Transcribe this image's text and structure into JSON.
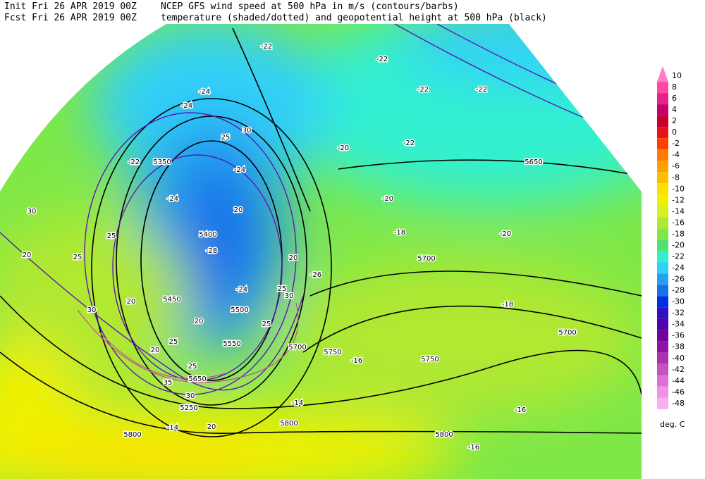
{
  "header": {
    "init": "Init  Fri 26 APR 2019 00Z",
    "fcst": "Fcst Fri 26 APR 2019 00Z",
    "title": "NCEP GFS wind speed at 500 hPa in m/s (contours/barbs)",
    "subtitle": "temperature (shaded/dotted) and geopotential height at 500 hPa (black)"
  },
  "legend": {
    "unit": "deg. C",
    "levels": [
      10,
      8,
      6,
      4,
      2,
      0,
      -2,
      -4,
      -6,
      -8,
      -10,
      -12,
      -14,
      -16,
      -18,
      -20,
      -22,
      -24,
      -26,
      -28,
      -30,
      -32,
      -34,
      -36,
      -38,
      -40,
      -42,
      -44,
      -46,
      -48
    ],
    "colors": [
      "#ff7ec8",
      "#ff4aa0",
      "#e8208a",
      "#c8006e",
      "#c8002a",
      "#e8141c",
      "#ff4000",
      "#ff7a00",
      "#ffa000",
      "#ffbf00",
      "#ffe000",
      "#f0f000",
      "#d8f020",
      "#b0e830",
      "#7ee848",
      "#50e070",
      "#30f0d0",
      "#30d0f8",
      "#28a0f0",
      "#1870e8",
      "#0030e0",
      "#3010c0",
      "#5000b0",
      "#7000a0",
      "#9010a0",
      "#b030b0",
      "#c850c0",
      "#e070d8",
      "#f090e8",
      "#f8b0f0"
    ]
  },
  "map_labels": [
    -22,
    -22,
    -24,
    -22,
    -22,
    -24,
    30,
    25,
    -22,
    -20,
    -22,
    5350,
    -24,
    5650,
    -24,
    20,
    -20,
    25,
    30,
    25,
    20,
    5400,
    -18,
    -20,
    -28,
    20,
    -26,
    5700,
    25,
    30,
    20,
    5450,
    -18,
    -24,
    5500,
    30,
    20,
    25,
    5700,
    5550,
    25,
    20,
    5700,
    5750,
    -16,
    5750,
    25,
    5650,
    35,
    30,
    5250,
    -14,
    -16,
    5800,
    -14,
    20,
    5800,
    5800,
    -16
  ]
}
